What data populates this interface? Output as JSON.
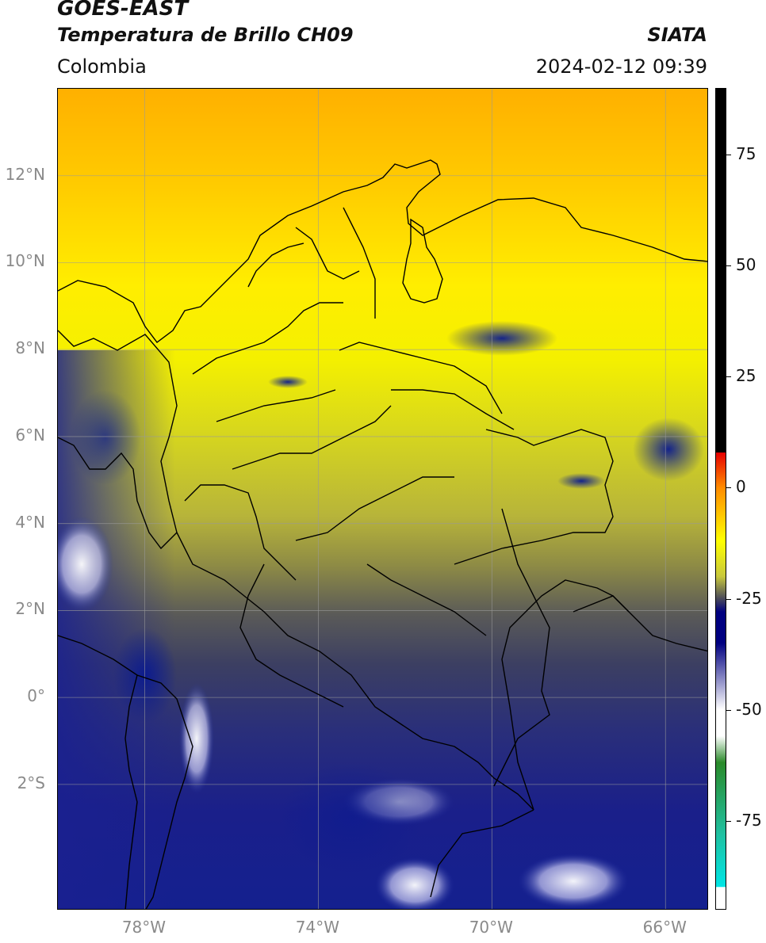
{
  "header": {
    "title_line1": "GOES-EAST",
    "title_line2": "Temperatura de Brillo CH09",
    "brand": "SIATA",
    "region": "Colombia",
    "datetime": "2024-02-12 09:39"
  },
  "map": {
    "lat_range": [
      -4.9,
      14.0
    ],
    "lon_range": [
      -80.0,
      -65.0
    ],
    "lat_ticks": [
      {
        "value": 12,
        "label": "12°N"
      },
      {
        "value": 10,
        "label": "10°N"
      },
      {
        "value": 8,
        "label": "8°N"
      },
      {
        "value": 6,
        "label": "6°N"
      },
      {
        "value": 4,
        "label": "4°N"
      },
      {
        "value": 2,
        "label": "2°N"
      },
      {
        "value": 0,
        "label": "0°"
      },
      {
        "value": -2,
        "label": "2°S"
      }
    ],
    "lon_ticks": [
      {
        "value": -78,
        "label": "78°W"
      },
      {
        "value": -74,
        "label": "74°W"
      },
      {
        "value": -70,
        "label": "70°W"
      },
      {
        "value": -66,
        "label": "66°W"
      }
    ],
    "gridlines": true
  },
  "colorbar": {
    "range": [
      -95,
      90
    ],
    "ticks": [
      {
        "value": 75,
        "label": "75"
      },
      {
        "value": 50,
        "label": "50"
      },
      {
        "value": 25,
        "label": "25"
      },
      {
        "value": 0,
        "label": "0"
      },
      {
        "value": -25,
        "label": "-25"
      },
      {
        "value": -50,
        "label": "-50"
      },
      {
        "value": -75,
        "label": "-75"
      }
    ],
    "colors": {
      "top": "#000000",
      "red": "#e60000",
      "orange": "#ff8c00",
      "yellow": "#ffff00",
      "olive": "#c8c83c",
      "grey": "#4a4a5a",
      "navy": "#000080",
      "white": "#ffffff",
      "green": "#2a8a2a",
      "teal": "#20c0a0",
      "cyan": "#00e5e5"
    }
  }
}
